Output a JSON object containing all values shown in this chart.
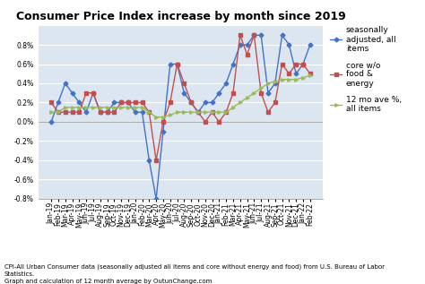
{
  "title": "Consumer Price Index increase by month since 2019",
  "footnote": "CPI-All Urban Consumer data (seasonally adjusted all items and core without energy and food) from U.S. Bureau of Labor\nStatistics.\nGraph and calculation of 12 month average by OutunChange.com",
  "labels": [
    "Jan-19",
    "Feb-19",
    "Mar-19",
    "Apr-19",
    "May-19",
    "Jun-19",
    "Jul-19",
    "Aug-19",
    "Sep-19",
    "Oct-19",
    "Nov-19",
    "Dec-19",
    "Jan-20",
    "Feb-20",
    "Mar-20",
    "Apr-20",
    "May-20",
    "Jun-20",
    "Jul-20",
    "Aug-20",
    "Sep-20",
    "Oct-20",
    "Nov-20",
    "Dec-20",
    "Jan-21",
    "Feb-21",
    "Mar-21",
    "Apr-21",
    "May-21",
    "Jun-21",
    "Jul-21",
    "Aug-21",
    "Sep-21",
    "Oct-21",
    "Nov-21",
    "Dec-21",
    "Jan-22",
    "Feb-22"
  ],
  "blue_values": [
    0.0,
    0.2,
    0.4,
    0.3,
    0.2,
    0.1,
    0.3,
    0.1,
    0.1,
    0.2,
    0.2,
    0.2,
    0.1,
    0.1,
    -0.4,
    -0.8,
    -0.1,
    0.6,
    0.6,
    0.3,
    0.2,
    0.1,
    0.2,
    0.2,
    0.3,
    0.4,
    0.6,
    0.8,
    0.8,
    0.9,
    0.9,
    0.3,
    0.4,
    0.9,
    0.8,
    0.5,
    0.6,
    0.8
  ],
  "red_values": [
    0.2,
    0.1,
    0.1,
    0.1,
    0.1,
    0.3,
    0.3,
    0.1,
    0.1,
    0.1,
    0.2,
    0.2,
    0.2,
    0.2,
    0.1,
    -0.4,
    0.0,
    0.2,
    0.6,
    0.4,
    0.2,
    0.1,
    0.0,
    0.1,
    0.0,
    0.1,
    0.3,
    0.9,
    0.7,
    0.9,
    0.3,
    0.1,
    0.2,
    0.6,
    0.5,
    0.6,
    0.6,
    0.5
  ],
  "green_values": [
    0.1,
    0.1,
    0.15,
    0.15,
    0.15,
    0.15,
    0.15,
    0.15,
    0.15,
    0.15,
    0.15,
    0.15,
    0.15,
    0.15,
    0.1,
    0.05,
    0.05,
    0.07,
    0.1,
    0.1,
    0.1,
    0.1,
    0.1,
    0.1,
    0.1,
    0.1,
    0.15,
    0.2,
    0.25,
    0.3,
    0.35,
    0.4,
    0.42,
    0.44,
    0.44,
    0.44,
    0.46,
    0.48
  ],
  "blue_color": "#4472c4",
  "red_color": "#c0504d",
  "green_color": "#9bbb59",
  "bg_color": "#ffffff",
  "plot_bg_color": "#dce6f1",
  "ylim": [
    -0.8,
    1.0
  ],
  "yticks": [
    -0.8,
    -0.6,
    -0.4,
    -0.2,
    0.0,
    0.2,
    0.4,
    0.6,
    0.8
  ],
  "legend_labels": [
    "seasonally\nadjusted, all\nitems",
    "core w/o\nfood &\nenergy",
    "12 mo ave %,\nall items"
  ],
  "title_fontsize": 9,
  "tick_fontsize": 5.5,
  "legend_fontsize": 6.5,
  "footnote_fontsize": 5
}
